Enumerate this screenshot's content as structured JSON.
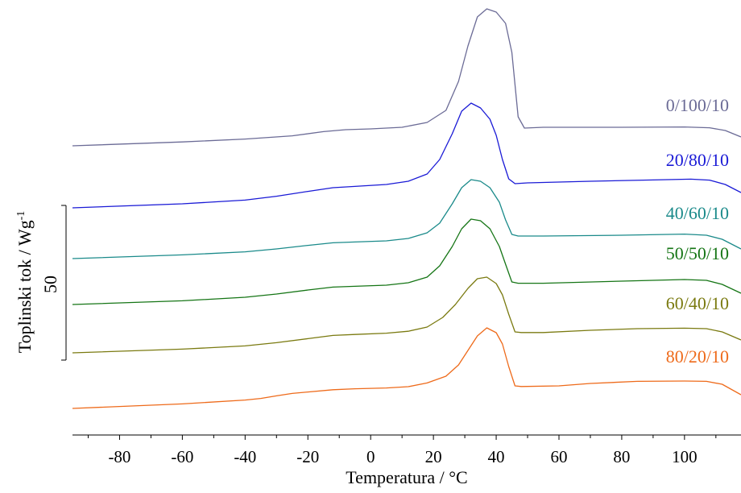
{
  "chart_data": {
    "type": "line",
    "xlabel": "Temperatura / °C",
    "ylabel": "Toplinski tok / Wg",
    "ylabel_superscript": "-1",
    "scale_bar": {
      "label": "50",
      "value": 50
    },
    "xlim": [
      -95,
      118
    ],
    "xticks": [
      -80,
      -60,
      -40,
      -20,
      0,
      20,
      40,
      60,
      80,
      100
    ],
    "xminor": [
      -90,
      -70,
      -50,
      -30,
      -10,
      10,
      30,
      50,
      70,
      90,
      110
    ],
    "y_unit_note": "heat flow in relative units; curves vertically offset",
    "series": [
      {
        "name": "0/100/10",
        "color": "#6b6b96",
        "points": [
          [
            -95,
            0
          ],
          [
            -60,
            2.4
          ],
          [
            -40,
            4.2
          ],
          [
            -25,
            6.2
          ],
          [
            -15,
            8.8
          ],
          [
            -8,
            10.0
          ],
          [
            0,
            10.5
          ],
          [
            10,
            11.5
          ],
          [
            18,
            14.5
          ],
          [
            24,
            22
          ],
          [
            28,
            40
          ],
          [
            31,
            62
          ],
          [
            34,
            80
          ],
          [
            37,
            85
          ],
          [
            40,
            83
          ],
          [
            43,
            76
          ],
          [
            45,
            58
          ],
          [
            47,
            18
          ],
          [
            49,
            11
          ],
          [
            55,
            11.5
          ],
          [
            80,
            11.5
          ],
          [
            100,
            11.7
          ],
          [
            108,
            11.2
          ],
          [
            113,
            9.5
          ],
          [
            118,
            5.5
          ]
        ]
      },
      {
        "name": "20/80/10",
        "color": "#1a1ad6",
        "points": [
          [
            -95,
            0
          ],
          [
            -60,
            2.5
          ],
          [
            -40,
            4.8
          ],
          [
            -30,
            7.2
          ],
          [
            -20,
            10.2
          ],
          [
            -12,
            12.5
          ],
          [
            -5,
            13.3
          ],
          [
            5,
            14.5
          ],
          [
            12,
            16.5
          ],
          [
            18,
            21
          ],
          [
            22,
            30
          ],
          [
            26,
            46
          ],
          [
            29,
            60
          ],
          [
            32,
            65
          ],
          [
            35,
            62
          ],
          [
            38,
            55
          ],
          [
            40,
            45
          ],
          [
            42,
            30
          ],
          [
            44,
            18
          ],
          [
            46,
            15
          ],
          [
            50,
            15.5
          ],
          [
            70,
            16.5
          ],
          [
            90,
            17.3
          ],
          [
            102,
            17.8
          ],
          [
            108,
            17.2
          ],
          [
            113,
            14.5
          ],
          [
            118,
            9.5
          ]
        ]
      },
      {
        "name": "40/60/10",
        "color": "#1a8a8a",
        "points": [
          [
            -95,
            0
          ],
          [
            -60,
            2.3
          ],
          [
            -40,
            4.2
          ],
          [
            -30,
            6.0
          ],
          [
            -20,
            8.2
          ],
          [
            -12,
            9.8
          ],
          [
            -5,
            10.3
          ],
          [
            5,
            11.0
          ],
          [
            12,
            12.5
          ],
          [
            18,
            16
          ],
          [
            22,
            22
          ],
          [
            26,
            34
          ],
          [
            29,
            44
          ],
          [
            32,
            49
          ],
          [
            35,
            48
          ],
          [
            38,
            44
          ],
          [
            41,
            35
          ],
          [
            43,
            24
          ],
          [
            45,
            15
          ],
          [
            47,
            14
          ],
          [
            55,
            14
          ],
          [
            80,
            14.5
          ],
          [
            100,
            15.2
          ],
          [
            107,
            14.5
          ],
          [
            112,
            12
          ],
          [
            118,
            6
          ]
        ]
      },
      {
        "name": "50/50/10",
        "color": "#157515",
        "points": [
          [
            -95,
            0
          ],
          [
            -60,
            2.3
          ],
          [
            -40,
            4.5
          ],
          [
            -30,
            6.5
          ],
          [
            -20,
            9.0
          ],
          [
            -12,
            10.8
          ],
          [
            -5,
            11.3
          ],
          [
            5,
            12.0
          ],
          [
            12,
            13.5
          ],
          [
            18,
            17
          ],
          [
            22,
            24
          ],
          [
            26,
            36
          ],
          [
            29,
            47
          ],
          [
            32,
            53
          ],
          [
            35,
            52
          ],
          [
            38,
            47
          ],
          [
            41,
            36
          ],
          [
            43,
            25
          ],
          [
            45,
            14
          ],
          [
            47,
            13.2
          ],
          [
            55,
            13.2
          ],
          [
            80,
            14.5
          ],
          [
            100,
            15.5
          ],
          [
            107,
            15.0
          ],
          [
            112,
            12.5
          ],
          [
            118,
            7
          ]
        ]
      },
      {
        "name": "60/40/10",
        "color": "#7a7a10",
        "points": [
          [
            -95,
            0
          ],
          [
            -60,
            2.3
          ],
          [
            -40,
            4.3
          ],
          [
            -30,
            6.3
          ],
          [
            -20,
            8.8
          ],
          [
            -12,
            10.8
          ],
          [
            -5,
            11.4
          ],
          [
            5,
            12.2
          ],
          [
            12,
            13.4
          ],
          [
            18,
            16
          ],
          [
            23,
            22
          ],
          [
            27,
            30
          ],
          [
            31,
            40
          ],
          [
            34,
            46
          ],
          [
            37,
            47
          ],
          [
            40,
            43
          ],
          [
            42,
            36
          ],
          [
            44,
            24
          ],
          [
            46,
            13
          ],
          [
            48,
            12.6
          ],
          [
            55,
            12.6
          ],
          [
            70,
            14
          ],
          [
            85,
            15
          ],
          [
            100,
            15.3
          ],
          [
            107,
            15
          ],
          [
            112,
            13
          ],
          [
            118,
            8
          ]
        ]
      },
      {
        "name": "80/20/10",
        "color": "#ee6a1a",
        "points": [
          [
            -95,
            0
          ],
          [
            -60,
            2.8
          ],
          [
            -40,
            5.2
          ],
          [
            -35,
            6.2
          ],
          [
            -30,
            7.8
          ],
          [
            -25,
            9.3
          ],
          [
            -20,
            10.2
          ],
          [
            -12,
            11.6
          ],
          [
            -5,
            12.2
          ],
          [
            5,
            12.7
          ],
          [
            12,
            13.5
          ],
          [
            18,
            15.8
          ],
          [
            24,
            20
          ],
          [
            28,
            27
          ],
          [
            31,
            36
          ],
          [
            34,
            45
          ],
          [
            37,
            50
          ],
          [
            40,
            47
          ],
          [
            42,
            40
          ],
          [
            44,
            26
          ],
          [
            46,
            14
          ],
          [
            48,
            13.6
          ],
          [
            60,
            14
          ],
          [
            70,
            15.5
          ],
          [
            85,
            16.8
          ],
          [
            100,
            17
          ],
          [
            107,
            16.8
          ],
          [
            112,
            15
          ],
          [
            118,
            8.5
          ]
        ]
      }
    ]
  }
}
